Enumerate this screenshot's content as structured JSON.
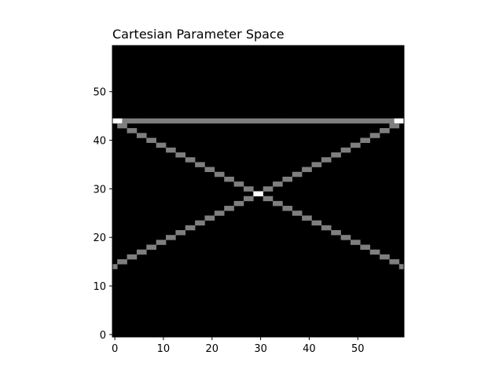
{
  "chart_data": {
    "type": "heatmap",
    "title": "Cartesian Parameter Space",
    "xlabel": "",
    "ylabel": "",
    "xlim": [
      -0.5,
      59.5
    ],
    "ylim": [
      -0.5,
      59.5
    ],
    "x_ticks": [
      0,
      10,
      20,
      30,
      40,
      50
    ],
    "y_ticks": [
      0,
      10,
      20,
      30,
      40,
      50
    ],
    "x_tick_labels": [
      "0",
      "10",
      "20",
      "30",
      "40",
      "50"
    ],
    "y_tick_labels": [
      "0",
      "10",
      "20",
      "30",
      "40",
      "50"
    ],
    "grid": false,
    "colormap": "gray",
    "value_colors": {
      "0": "#000000",
      "1": "#7f7f7f",
      "2": "#ffffff"
    },
    "background_value": 0,
    "lines": [
      {
        "from": [
          0,
          44
        ],
        "to": [
          59,
          44
        ],
        "value": 1
      },
      {
        "from": [
          0,
          44
        ],
        "to": [
          59,
          14
        ],
        "value": 1
      },
      {
        "from": [
          0,
          14
        ],
        "to": [
          59,
          44
        ],
        "value": 1
      }
    ],
    "peaks": [
      {
        "x": 0,
        "y": 44,
        "value": 2
      },
      {
        "x": 1,
        "y": 44,
        "value": 2
      },
      {
        "x": 58,
        "y": 44,
        "value": 2
      },
      {
        "x": 59,
        "y": 44,
        "value": 2
      },
      {
        "x": 29,
        "y": 29,
        "value": 2
      },
      {
        "x": 30,
        "y": 29,
        "value": 2
      }
    ]
  }
}
